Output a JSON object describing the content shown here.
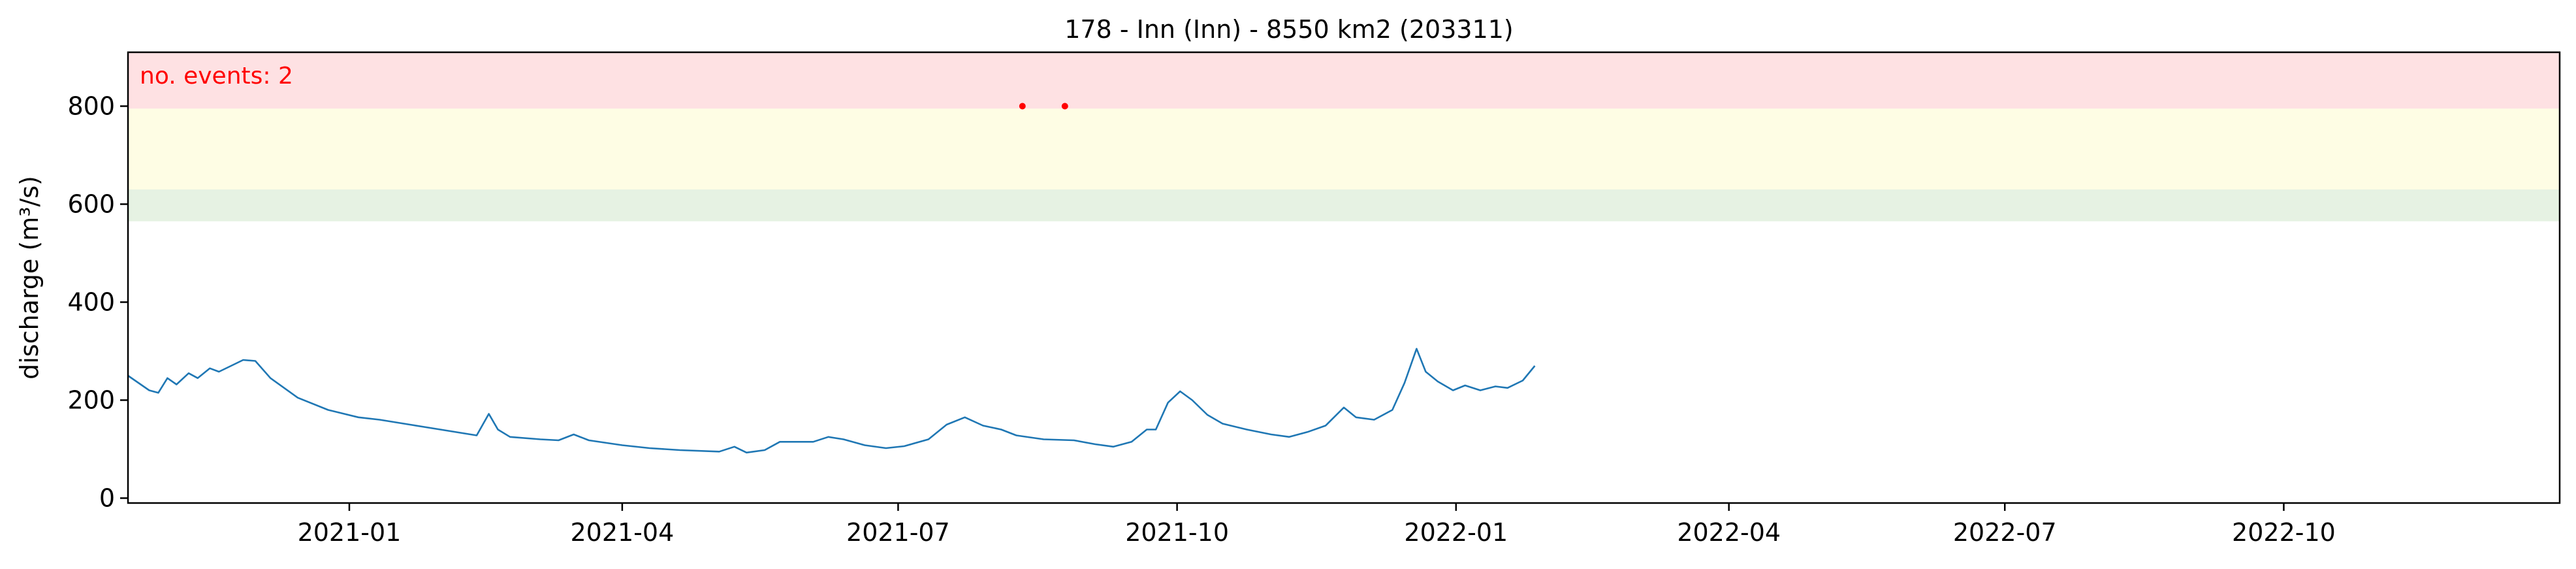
{
  "chart_data": {
    "type": "line",
    "title": "178 - Inn (Inn) - 8550 km2 (203311)",
    "xlabel": "",
    "ylabel": "discharge (m³/s)",
    "xlim": [
      "2020-10-20",
      "2022-12-31"
    ],
    "ylim": [
      -10,
      910
    ],
    "grid": false,
    "y_ticks": [
      0,
      200,
      400,
      600,
      800
    ],
    "x_ticks": [
      {
        "date": "2021-01-01",
        "label": "2021-01"
      },
      {
        "date": "2021-04-01",
        "label": "2021-04"
      },
      {
        "date": "2021-07-01",
        "label": "2021-07"
      },
      {
        "date": "2021-10-01",
        "label": "2021-10"
      },
      {
        "date": "2022-01-01",
        "label": "2022-01"
      },
      {
        "date": "2022-04-01",
        "label": "2022-04"
      },
      {
        "date": "2022-07-01",
        "label": "2022-07"
      },
      {
        "date": "2022-10-01",
        "label": "2022-10"
      }
    ],
    "bands": [
      {
        "from": 565,
        "to": 630,
        "color": "#e6f2e3"
      },
      {
        "from": 630,
        "to": 795,
        "color": "#fefde4"
      },
      {
        "from": 795,
        "to": 910,
        "color": "#fee1e3"
      }
    ],
    "annotation": {
      "text": "no. events: 2",
      "color": "#ff0000"
    },
    "events": [
      {
        "x": "2021-08-11",
        "y": 800
      },
      {
        "x": "2021-08-25",
        "y": 800
      }
    ],
    "event_color": "#ff0000",
    "line_color": "#1f77b4",
    "series": [
      {
        "points": [
          [
            "2020-10-20",
            250
          ],
          [
            "2020-10-27",
            220
          ],
          [
            "2020-10-30",
            215
          ],
          [
            "2020-11-02",
            245
          ],
          [
            "2020-11-05",
            232
          ],
          [
            "2020-11-09",
            255
          ],
          [
            "2020-11-12",
            245
          ],
          [
            "2020-11-16",
            265
          ],
          [
            "2020-11-19",
            258
          ],
          [
            "2020-11-23",
            270
          ],
          [
            "2020-11-27",
            282
          ],
          [
            "2020-12-01",
            280
          ],
          [
            "2020-12-06",
            245
          ],
          [
            "2020-12-15",
            205
          ],
          [
            "2020-12-25",
            180
          ],
          [
            "2021-01-04",
            165
          ],
          [
            "2021-01-11",
            160
          ],
          [
            "2021-01-21",
            150
          ],
          [
            "2021-01-31",
            140
          ],
          [
            "2021-02-08",
            132
          ],
          [
            "2021-02-12",
            128
          ],
          [
            "2021-02-16",
            172
          ],
          [
            "2021-02-19",
            140
          ],
          [
            "2021-02-23",
            125
          ],
          [
            "2021-03-05",
            120
          ],
          [
            "2021-03-11",
            118
          ],
          [
            "2021-03-16",
            130
          ],
          [
            "2021-03-21",
            118
          ],
          [
            "2021-04-01",
            108
          ],
          [
            "2021-04-10",
            102
          ],
          [
            "2021-04-20",
            98
          ],
          [
            "2021-05-03",
            95
          ],
          [
            "2021-05-08",
            105
          ],
          [
            "2021-05-12",
            93
          ],
          [
            "2021-05-18",
            98
          ],
          [
            "2021-05-23",
            115
          ],
          [
            "2021-06-03",
            115
          ],
          [
            "2021-06-08",
            125
          ],
          [
            "2021-06-13",
            120
          ],
          [
            "2021-06-20",
            108
          ],
          [
            "2021-06-27",
            102
          ],
          [
            "2021-07-03",
            106
          ],
          [
            "2021-07-11",
            120
          ],
          [
            "2021-07-17",
            150
          ],
          [
            "2021-07-23",
            165
          ],
          [
            "2021-07-29",
            148
          ],
          [
            "2021-08-04",
            140
          ],
          [
            "2021-08-09",
            128
          ],
          [
            "2021-08-18",
            120
          ],
          [
            "2021-08-28",
            118
          ],
          [
            "2021-09-04",
            110
          ],
          [
            "2021-09-10",
            105
          ],
          [
            "2021-09-16",
            115
          ],
          [
            "2021-09-21",
            140
          ],
          [
            "2021-09-24",
            140
          ],
          [
            "2021-09-28",
            195
          ],
          [
            "2021-10-02",
            218
          ],
          [
            "2021-10-06",
            200
          ],
          [
            "2021-10-11",
            170
          ],
          [
            "2021-10-16",
            152
          ],
          [
            "2021-10-24",
            140
          ],
          [
            "2021-11-01",
            130
          ],
          [
            "2021-11-07",
            125
          ],
          [
            "2021-11-13",
            135
          ],
          [
            "2021-11-19",
            148
          ],
          [
            "2021-11-25",
            185
          ],
          [
            "2021-11-29",
            165
          ],
          [
            "2021-12-05",
            160
          ],
          [
            "2021-12-11",
            180
          ],
          [
            "2021-12-15",
            235
          ],
          [
            "2021-12-19",
            305
          ],
          [
            "2021-12-22",
            258
          ],
          [
            "2021-12-26",
            238
          ],
          [
            "2021-12-31",
            220
          ],
          [
            "2022-01-04",
            230
          ],
          [
            "2022-01-09",
            220
          ],
          [
            "2022-01-14",
            228
          ],
          [
            "2022-01-18",
            225
          ],
          [
            "2022-01-23",
            240
          ],
          [
            "2022-01-27",
            270
          ]
        ]
      }
    ]
  }
}
